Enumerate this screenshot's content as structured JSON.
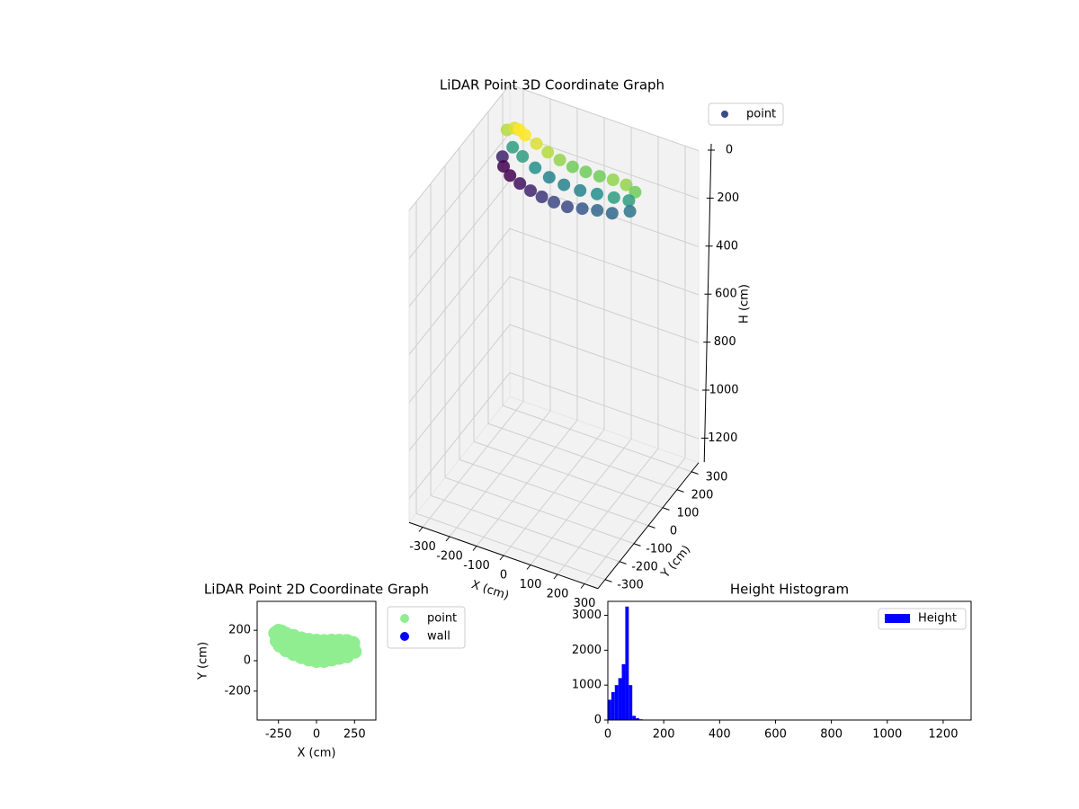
{
  "chart_data": [
    {
      "type": "scatter3d",
      "title": "LiDAR Point 3D Coordinate Graph",
      "xlabel": "X (cm)",
      "ylabel": "Y (cm)",
      "zlabel": "H (cm)",
      "xlim": [
        -350,
        350
      ],
      "ylim": [
        -350,
        350
      ],
      "zlim": [
        0,
        1300
      ],
      "z_inverted": true,
      "xticks": [
        -300,
        -200,
        -100,
        0,
        100,
        200,
        300
      ],
      "yticks": [
        -300,
        -200,
        -100,
        0,
        100,
        200,
        300
      ],
      "zticks": [
        0,
        200,
        400,
        600,
        800,
        1000,
        1200
      ],
      "legend": "upper right",
      "grid": true,
      "series": [
        {
          "name": "point",
          "color": "#3b4a8a",
          "colormap": "viridis",
          "x": [
            -270,
            -250,
            -230,
            -200,
            -150,
            -100,
            -50,
            0,
            50,
            100,
            150,
            200,
            240,
            -230,
            -180,
            -120,
            -60,
            0,
            60,
            120,
            180,
            230,
            -260,
            -240,
            -200,
            -150,
            -100,
            -50,
            0,
            50,
            100,
            150,
            200,
            250
          ],
          "y": [
            180,
            195,
            190,
            175,
            160,
            145,
            135,
            130,
            128,
            130,
            130,
            128,
            115,
            145,
            120,
            95,
            80,
            70,
            70,
            75,
            80,
            90,
            130,
            100,
            70,
            45,
            25,
            10,
            0,
            0,
            10,
            20,
            30,
            60
          ],
          "z": [
            30,
            25,
            20,
            20,
            25,
            30,
            35,
            40,
            40,
            40,
            35,
            35,
            40,
            60,
            60,
            65,
            70,
            70,
            70,
            65,
            60,
            60,
            100,
            110,
            110,
            105,
            100,
            95,
            90,
            90,
            85,
            80,
            80,
            75
          ]
        }
      ]
    },
    {
      "type": "scatter",
      "title": "LiDAR Point 2D Coordinate Graph",
      "xlabel": "X (cm)",
      "ylabel": "Y (cm)",
      "xlim": [
        -390,
        390
      ],
      "ylim": [
        -390,
        390
      ],
      "xticks": [
        -250,
        0,
        250
      ],
      "yticks": [
        -200,
        0,
        200
      ],
      "legend": "outside right",
      "series": [
        {
          "name": "point",
          "color": "#90ee90",
          "x": [
            -270,
            -250,
            -230,
            -200,
            -150,
            -100,
            -50,
            0,
            50,
            100,
            150,
            200,
            240,
            -230,
            -180,
            -120,
            -60,
            0,
            60,
            120,
            180,
            230,
            -260,
            -240,
            -200,
            -150,
            -100,
            -50,
            0,
            50,
            100,
            150,
            200,
            250
          ],
          "y": [
            180,
            195,
            190,
            175,
            160,
            145,
            135,
            130,
            128,
            130,
            130,
            128,
            115,
            145,
            120,
            95,
            80,
            70,
            70,
            75,
            80,
            90,
            130,
            100,
            70,
            45,
            25,
            10,
            0,
            0,
            10,
            20,
            30,
            60
          ]
        },
        {
          "name": "wall",
          "color": "#0000ff",
          "x": [],
          "y": []
        }
      ]
    },
    {
      "type": "histogram",
      "title": "Height Histogram",
      "legend": "upper right",
      "bins": [
        0,
        12.5,
        25,
        37.5,
        50,
        62.5,
        75,
        87.5,
        100,
        112.5,
        125,
        137.5,
        150
      ],
      "series": [
        {
          "name": "Height",
          "color": "#0000ff",
          "values": [
            580,
            800,
            1000,
            1200,
            1600,
            3250,
            1000,
            120,
            50,
            20,
            10,
            5
          ]
        }
      ],
      "xlim": [
        0,
        1300
      ],
      "xticks": [
        0,
        200,
        400,
        600,
        800,
        1000,
        1200
      ],
      "ylim": [
        0,
        3400
      ],
      "yticks": [
        0,
        1000,
        2000,
        3000
      ]
    }
  ]
}
